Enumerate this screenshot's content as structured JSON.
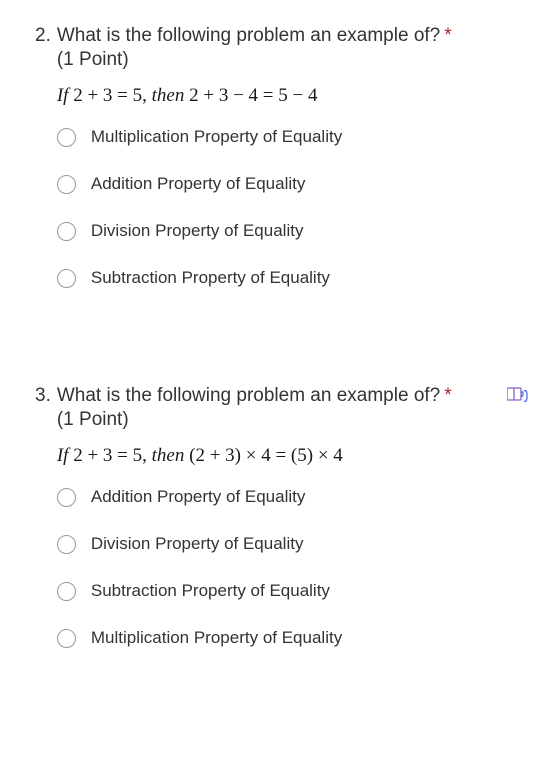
{
  "questions": [
    {
      "number": "2.",
      "text": "What is the following problem an example of?",
      "required": "*",
      "points": "(1 Point)",
      "equation_prefix": "If",
      "equation_part1": " 2 + 3 = 5, ",
      "equation_mid": "then",
      "equation_part2": " 2 + 3 − 4 = 5 − 4",
      "options": [
        "Multiplication Property of Equality",
        "Addition Property of Equality",
        "Division Property of Equality",
        "Subtraction Property of Equality"
      ],
      "has_reader_icon": false
    },
    {
      "number": "3.",
      "text": "What is the following problem an example of?",
      "required": "*",
      "points": "(1 Point)",
      "equation_prefix": "If",
      "equation_part1": " 2 + 3 = 5, ",
      "equation_mid": "then",
      "equation_part2": "  (2 + 3) × 4 = (5) × 4",
      "options": [
        "Addition Property of Equality",
        "Division Property of Equality",
        "Subtraction Property of Equality",
        "Multiplication Property of Equality"
      ],
      "has_reader_icon": true
    }
  ],
  "colors": {
    "text": "#333333",
    "required": "#a4262c",
    "radio_border": "#999999",
    "background": "#ffffff",
    "icon_purple": "#8661c5",
    "icon_blue": "#4f6bed"
  }
}
